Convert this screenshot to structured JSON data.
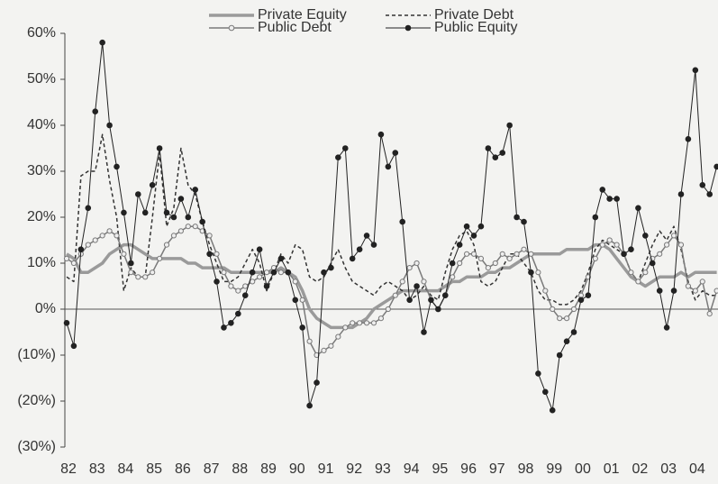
{
  "chart_data": {
    "type": "line",
    "categories": [
      "82",
      null,
      null,
      null,
      "83",
      null,
      null,
      null,
      "84",
      null,
      null,
      null,
      "85",
      null,
      null,
      null,
      "86",
      null,
      null,
      null,
      "87",
      null,
      null,
      null,
      "88",
      null,
      null,
      null,
      "89",
      null,
      null,
      null,
      "90",
      null,
      null,
      null,
      "91",
      null,
      null,
      null,
      "92",
      null,
      null,
      null,
      "93",
      null,
      null,
      null,
      "94",
      null,
      null,
      null,
      "95",
      null,
      null,
      null,
      "96",
      null,
      null,
      null,
      "97",
      null,
      null,
      null,
      "98",
      null,
      null,
      null,
      "99",
      null,
      null,
      null,
      "00",
      null,
      null,
      null,
      "01",
      null,
      null,
      null,
      "02",
      null,
      null,
      null,
      "03",
      null,
      null,
      null,
      "04",
      null,
      null,
      null
    ],
    "series": [
      {
        "name": "Private Equity",
        "color": "#9a9a9a",
        "width": 3.5,
        "dash": false,
        "marker": "none",
        "values": [
          12,
          11,
          8,
          8,
          9,
          10,
          12,
          13,
          14,
          14,
          13,
          12,
          11,
          11,
          11,
          11,
          11,
          10,
          10,
          9,
          9,
          9,
          9,
          8,
          8,
          8,
          8,
          8,
          8,
          8,
          9,
          8,
          7,
          4,
          0,
          -2,
          -3,
          -4,
          -4,
          -4,
          -4,
          -3,
          -2,
          0,
          1,
          2,
          3,
          4,
          4,
          4,
          4,
          4,
          4,
          5,
          6,
          6,
          7,
          7,
          7,
          8,
          8,
          9,
          9,
          10,
          11,
          12,
          12,
          12,
          12,
          12,
          13,
          13,
          13,
          13,
          14,
          14,
          13,
          11,
          9,
          7,
          6,
          5,
          6,
          7,
          7,
          7,
          8,
          7,
          8,
          8,
          8,
          8
        ]
      },
      {
        "name": "Private Debt",
        "color": "#333333",
        "width": 1.5,
        "dash": true,
        "marker": "none",
        "values": [
          7,
          6,
          29,
          30,
          30,
          38,
          28,
          20,
          4,
          9,
          7,
          7,
          20,
          34,
          18,
          22,
          35,
          27,
          25,
          19,
          14,
          10,
          6,
          6,
          7,
          10,
          13,
          10,
          4,
          8,
          12,
          10,
          14,
          13,
          7,
          6,
          7,
          10,
          13,
          9,
          6,
          5,
          4,
          3,
          5,
          6,
          5,
          4,
          2,
          3,
          5,
          3,
          2,
          8,
          13,
          16,
          17,
          14,
          6,
          5,
          6,
          9,
          12,
          12,
          10,
          8,
          4,
          2,
          2,
          1,
          1,
          2,
          4,
          8,
          13,
          15,
          14,
          13,
          12,
          8,
          6,
          10,
          14,
          17,
          15,
          18,
          13,
          6,
          2,
          4,
          3,
          3
        ]
      },
      {
        "name": "Public Debt",
        "color": "#7a7a7a",
        "width": 1.5,
        "dash": false,
        "marker": "open-circle",
        "values": [
          11,
          10,
          12,
          14,
          15,
          16,
          17,
          16,
          12,
          8,
          7,
          7,
          8,
          11,
          14,
          16,
          17,
          18,
          18,
          17,
          16,
          12,
          8,
          5,
          4,
          5,
          6,
          7,
          8,
          9,
          8,
          8,
          6,
          2,
          -7,
          -10,
          -9,
          -8,
          -6,
          -4,
          -3,
          -3,
          -3,
          -3,
          -2,
          0,
          3,
          6,
          9,
          10,
          6,
          2,
          0,
          3,
          7,
          10,
          12,
          12,
          11,
          9,
          10,
          12,
          11,
          12,
          13,
          12,
          8,
          4,
          0,
          -2,
          -2,
          0,
          3,
          7,
          11,
          14,
          15,
          14,
          12,
          8,
          6,
          8,
          11,
          12,
          14,
          16,
          14,
          5,
          4,
          6,
          -1,
          4
        ]
      },
      {
        "name": "Public Equity",
        "color": "#222222",
        "width": 1,
        "dash": false,
        "marker": "filled-circle",
        "values": [
          -3,
          -8,
          13,
          22,
          43,
          58,
          40,
          31,
          21,
          10,
          25,
          21,
          27,
          35,
          21,
          20,
          24,
          20,
          26,
          19,
          12,
          6,
          -4,
          -3,
          -1,
          3,
          8,
          13,
          5,
          8,
          11,
          8,
          2,
          -4,
          -21,
          -16,
          8,
          9,
          33,
          35,
          11,
          13,
          16,
          14,
          38,
          31,
          34,
          19,
          2,
          5,
          -5,
          2,
          0,
          3,
          10,
          14,
          18,
          16,
          18,
          35,
          33,
          34,
          40,
          20,
          19,
          8,
          -14,
          -18,
          -22,
          -10,
          -7,
          -5,
          2,
          3,
          20,
          26,
          24,
          24,
          12,
          13,
          22,
          16,
          10,
          4,
          -4,
          4,
          25,
          37,
          52,
          27,
          25,
          31
        ]
      }
    ],
    "ylim": [
      -30,
      60
    ],
    "yticks": [
      {
        "value": 60,
        "label": "60%"
      },
      {
        "value": 50,
        "label": "50%"
      },
      {
        "value": 40,
        "label": "40%"
      },
      {
        "value": 30,
        "label": "30%"
      },
      {
        "value": 20,
        "label": "20%"
      },
      {
        "value": 10,
        "label": "10%"
      },
      {
        "value": 0,
        "label": "0%"
      },
      {
        "value": -10,
        "label": "(10%)"
      },
      {
        "value": -20,
        "label": "(20%)"
      },
      {
        "value": -30,
        "label": "(30%)"
      }
    ],
    "legend": "top"
  }
}
